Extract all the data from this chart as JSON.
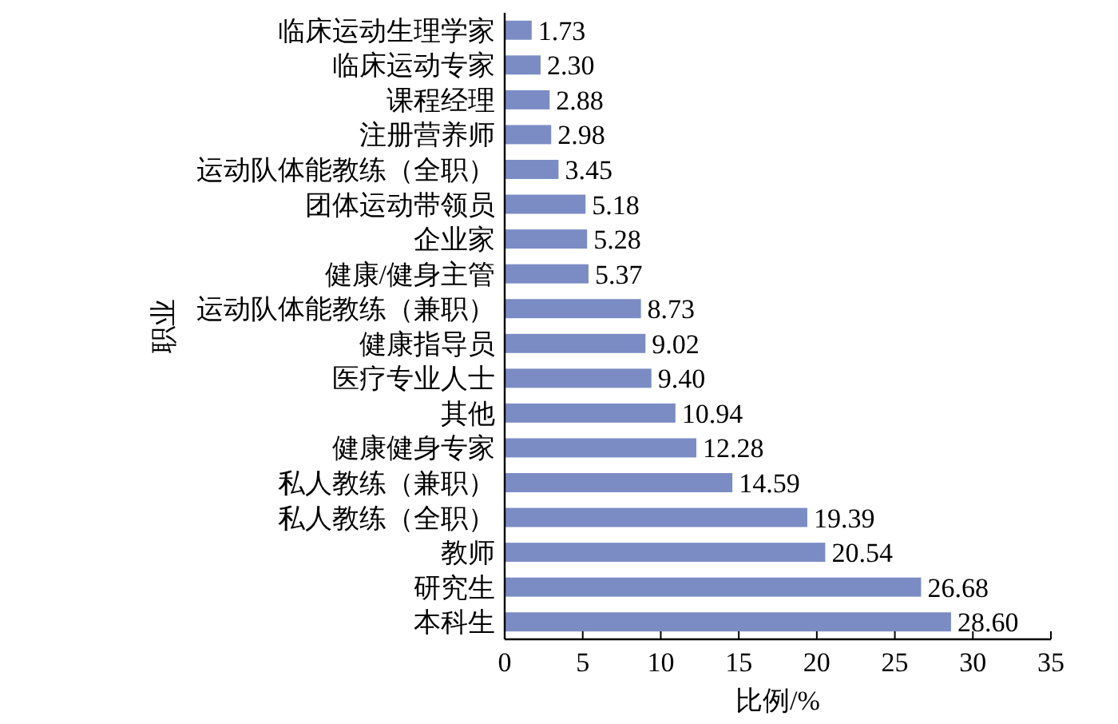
{
  "chart_data": {
    "type": "bar",
    "orientation": "horizontal",
    "xlabel": "比例/%",
    "ylabel": "职业",
    "categories": [
      "临床运动生理学家",
      "临床运动专家",
      "课程经理",
      "注册营养师",
      "运动队体能教练（全职）",
      "团体运动带领员",
      "企业家",
      "健康/健身主管",
      "运动队体能教练（兼职）",
      "健康指导员",
      "医疗专业人士",
      "其他",
      "健康健身专家",
      "私人教练（兼职）",
      "私人教练（全职）",
      "教师",
      "研究生",
      "本科生"
    ],
    "values": [
      1.73,
      2.3,
      2.88,
      2.98,
      3.45,
      5.18,
      5.28,
      5.37,
      8.73,
      9.02,
      9.4,
      10.94,
      12.28,
      14.59,
      19.39,
      20.54,
      26.68,
      28.6
    ],
    "value_labels": [
      "1.73",
      "2.30",
      "2.88",
      "2.98",
      "3.45",
      "5.18",
      "5.28",
      "5.37",
      "8.73",
      "9.02",
      "9.40",
      "10.94",
      "12.28",
      "14.59",
      "19.39",
      "20.54",
      "26.68",
      "28.60"
    ],
    "color": "#7b8cc4",
    "xlim": [
      0,
      35
    ],
    "xticks": [
      0,
      5,
      10,
      15,
      20,
      25,
      30,
      35
    ],
    "grid": false
  }
}
